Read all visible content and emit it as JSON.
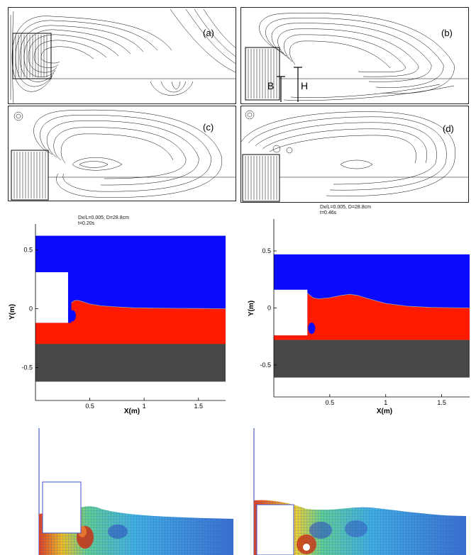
{
  "streamline_panels": [
    {
      "id": "a",
      "label": "(a)"
    },
    {
      "id": "b",
      "label": "(b)",
      "annotations": {
        "b": "B",
        "h": "H"
      }
    },
    {
      "id": "c",
      "label": "(c)"
    },
    {
      "id": "d",
      "label": "(d)"
    }
  ],
  "phase_plots": [
    {
      "caption_line1": "Dx/L=0.005, D=28.8cm",
      "caption_line2": "t=0.20s",
      "xlabel": "X(m)",
      "ylabel": "Y(m)",
      "x_ticks": [
        "0.5",
        "1",
        "1.5"
      ],
      "y_ticks": [
        "0.5",
        "0",
        "-0.5"
      ]
    },
    {
      "caption_line1": "Dx/L=0.005, D=28.8cm",
      "caption_line2": "t=0.46s",
      "xlabel": "X(m)",
      "ylabel": "Y(m)",
      "x_ticks": [
        "0.5",
        "1",
        "1.5"
      ],
      "y_ticks": [
        "0.5",
        "0",
        "-0.5"
      ]
    }
  ],
  "colors": {
    "air": "#0a0aff",
    "water": "#ff1a00",
    "ground": "#474747",
    "mesh_line": "#3c54c8"
  },
  "chart_data": [
    {
      "type": "area",
      "xlabel": "X(m)",
      "ylabel": "Y(m)",
      "xlim": [
        0,
        1.75
      ],
      "ylim": [
        -0.78,
        0.72
      ],
      "time_label": "t=0.20s",
      "regions": [
        "air",
        "water",
        "ground",
        "body"
      ],
      "body": {
        "x": [
          0.0,
          0.3
        ],
        "y": [
          -0.12,
          0.31
        ]
      },
      "ground_top": -0.3,
      "ground_bottom": -0.62,
      "domain_top": 0.62,
      "free_surface": {
        "x": [
          0.33,
          0.36,
          0.4,
          0.45,
          0.5,
          0.6,
          0.75,
          0.9,
          1.1,
          1.3,
          1.5,
          1.75
        ],
        "y": [
          0.05,
          0.07,
          0.07,
          0.055,
          0.04,
          0.025,
          0.015,
          0.008,
          0.005,
          0.003,
          0.002,
          0.0
        ]
      }
    },
    {
      "type": "area",
      "xlabel": "X(m)",
      "ylabel": "Y(m)",
      "xlim": [
        0,
        1.75
      ],
      "ylim": [
        -0.78,
        0.78
      ],
      "time_label": "t=0.46s",
      "regions": [
        "air",
        "water",
        "ground",
        "body"
      ],
      "body": {
        "x": [
          0.0,
          0.3
        ],
        "y": [
          -0.24,
          0.16
        ]
      },
      "ground_top": -0.28,
      "ground_bottom": -0.61,
      "domain_top": 0.47,
      "free_surface": {
        "x": [
          0.3,
          0.35,
          0.4,
          0.5,
          0.6,
          0.68,
          0.75,
          0.85,
          1.0,
          1.2,
          1.4,
          1.6,
          1.75
        ],
        "y": [
          0.13,
          0.09,
          0.08,
          0.09,
          0.11,
          0.12,
          0.11,
          0.08,
          0.04,
          0.015,
          0.005,
          0.002,
          0.0
        ]
      }
    }
  ]
}
